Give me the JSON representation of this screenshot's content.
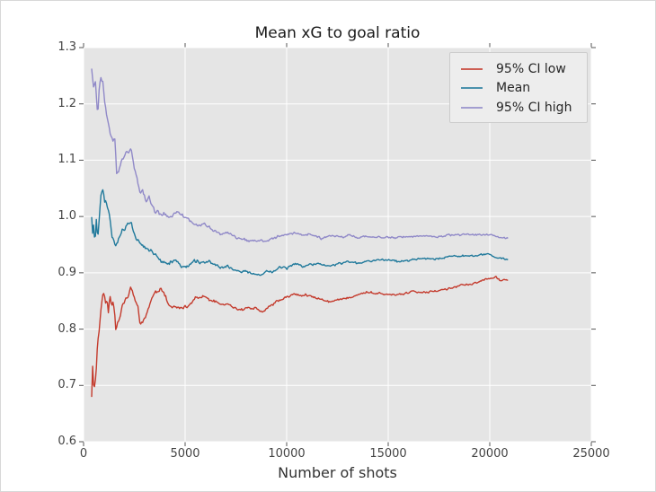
{
  "figure": {
    "background": "#ffffff",
    "plot_background": "#e5e5e5",
    "grid_color": "#ffffff",
    "tick_color": "#555555",
    "text_color": "#444444"
  },
  "chart_data": {
    "type": "line",
    "title": "Mean xG to goal ratio",
    "xlabel": "Number of shots",
    "ylabel": "",
    "xlim": [
      0,
      25000
    ],
    "ylim": [
      0.6,
      1.3
    ],
    "x_ticks": [
      "0",
      "5000",
      "10000",
      "15000",
      "20000",
      "25000"
    ],
    "y_ticks": [
      "0.6",
      "0.7",
      "0.8",
      "0.9",
      "1.0",
      "1.1",
      "1.2",
      "1.3"
    ],
    "grid": true,
    "legend_position": "upper right",
    "noise": {
      "base": 0.02,
      "ref": 700,
      "cap": 0.022
    },
    "series": [
      {
        "name": "95% CI low",
        "color": "#c43b2d",
        "points": [
          [
            400,
            0.682
          ],
          [
            440,
            0.728
          ],
          [
            480,
            0.71
          ],
          [
            520,
            0.695
          ],
          [
            580,
            0.716
          ],
          [
            640,
            0.74
          ],
          [
            700,
            0.778
          ],
          [
            760,
            0.8
          ],
          [
            820,
            0.812
          ],
          [
            880,
            0.837
          ],
          [
            970,
            0.868
          ],
          [
            1030,
            0.85
          ],
          [
            1100,
            0.845
          ],
          [
            1160,
            0.856
          ],
          [
            1200,
            0.818
          ],
          [
            1280,
            0.857
          ],
          [
            1370,
            0.843
          ],
          [
            1460,
            0.852
          ],
          [
            1530,
            0.83
          ],
          [
            1590,
            0.798
          ],
          [
            1700,
            0.814
          ],
          [
            1800,
            0.822
          ],
          [
            1900,
            0.838
          ],
          [
            2030,
            0.846
          ],
          [
            2210,
            0.861
          ],
          [
            2340,
            0.876
          ],
          [
            2430,
            0.862
          ],
          [
            2560,
            0.846
          ],
          [
            2690,
            0.836
          ],
          [
            2780,
            0.806
          ],
          [
            2920,
            0.815
          ],
          [
            3090,
            0.826
          ],
          [
            3220,
            0.84
          ],
          [
            3360,
            0.853
          ],
          [
            3530,
            0.869
          ],
          [
            3670,
            0.864
          ],
          [
            3800,
            0.875
          ],
          [
            3980,
            0.862
          ],
          [
            4110,
            0.852
          ],
          [
            4240,
            0.841
          ],
          [
            4420,
            0.837
          ],
          [
            4550,
            0.842
          ],
          [
            4680,
            0.838
          ],
          [
            4900,
            0.837
          ],
          [
            5120,
            0.841
          ],
          [
            5430,
            0.852
          ],
          [
            5570,
            0.857
          ],
          [
            5740,
            0.854
          ],
          [
            5960,
            0.857
          ],
          [
            6180,
            0.852
          ],
          [
            6400,
            0.85
          ],
          [
            6630,
            0.846
          ],
          [
            6850,
            0.843
          ],
          [
            7070,
            0.845
          ],
          [
            7290,
            0.84
          ],
          [
            7510,
            0.837
          ],
          [
            7770,
            0.834
          ],
          [
            8080,
            0.837
          ],
          [
            8390,
            0.839
          ],
          [
            8660,
            0.834
          ],
          [
            8900,
            0.831
          ],
          [
            9190,
            0.842
          ],
          [
            9600,
            0.85
          ],
          [
            10000,
            0.856
          ],
          [
            10380,
            0.862
          ],
          [
            10950,
            0.861
          ],
          [
            11400,
            0.856
          ],
          [
            11700,
            0.853
          ],
          [
            12150,
            0.848
          ],
          [
            12600,
            0.852
          ],
          [
            13030,
            0.857
          ],
          [
            13500,
            0.862
          ],
          [
            13910,
            0.866
          ],
          [
            14400,
            0.864
          ],
          [
            14930,
            0.863
          ],
          [
            15680,
            0.861
          ],
          [
            16250,
            0.868
          ],
          [
            16830,
            0.866
          ],
          [
            17710,
            0.87
          ],
          [
            18300,
            0.875
          ],
          [
            18600,
            0.878
          ],
          [
            19350,
            0.881
          ],
          [
            19920,
            0.89
          ],
          [
            20300,
            0.892
          ],
          [
            20550,
            0.886
          ],
          [
            20900,
            0.886
          ]
        ]
      },
      {
        "name": "Mean",
        "color": "#20799b",
        "points": [
          [
            400,
            0.99
          ],
          [
            450,
            0.962
          ],
          [
            500,
            0.988
          ],
          [
            560,
            0.944
          ],
          [
            620,
            1.0
          ],
          [
            700,
            0.962
          ],
          [
            800,
            1.012
          ],
          [
            930,
            1.057
          ],
          [
            1020,
            1.032
          ],
          [
            1100,
            1.022
          ],
          [
            1240,
            1.012
          ],
          [
            1400,
            0.968
          ],
          [
            1550,
            0.942
          ],
          [
            1650,
            0.956
          ],
          [
            1900,
            0.974
          ],
          [
            2120,
            0.982
          ],
          [
            2340,
            0.99
          ],
          [
            2470,
            0.968
          ],
          [
            2690,
            0.958
          ],
          [
            2920,
            0.948
          ],
          [
            3140,
            0.94
          ],
          [
            3360,
            0.937
          ],
          [
            3580,
            0.932
          ],
          [
            3800,
            0.921
          ],
          [
            4110,
            0.917
          ],
          [
            4420,
            0.921
          ],
          [
            4680,
            0.917
          ],
          [
            4990,
            0.91
          ],
          [
            5300,
            0.917
          ],
          [
            5570,
            0.921
          ],
          [
            5870,
            0.917
          ],
          [
            6180,
            0.921
          ],
          [
            6450,
            0.913
          ],
          [
            6760,
            0.908
          ],
          [
            7070,
            0.91
          ],
          [
            7330,
            0.905
          ],
          [
            7730,
            0.902
          ],
          [
            8080,
            0.901
          ],
          [
            8520,
            0.897
          ],
          [
            8970,
            0.901
          ],
          [
            9320,
            0.902
          ],
          [
            9630,
            0.91
          ],
          [
            10000,
            0.908
          ],
          [
            10380,
            0.916
          ],
          [
            10800,
            0.912
          ],
          [
            11200,
            0.915
          ],
          [
            11700,
            0.916
          ],
          [
            12150,
            0.912
          ],
          [
            12600,
            0.916
          ],
          [
            13030,
            0.92
          ],
          [
            13500,
            0.917
          ],
          [
            13910,
            0.92
          ],
          [
            14400,
            0.922
          ],
          [
            14930,
            0.923
          ],
          [
            15400,
            0.92
          ],
          [
            15900,
            0.922
          ],
          [
            16400,
            0.924
          ],
          [
            16830,
            0.925
          ],
          [
            17300,
            0.924
          ],
          [
            17800,
            0.927
          ],
          [
            18300,
            0.929
          ],
          [
            18900,
            0.931
          ],
          [
            19400,
            0.931
          ],
          [
            19920,
            0.933
          ],
          [
            20300,
            0.928
          ],
          [
            20600,
            0.925
          ],
          [
            20900,
            0.924
          ]
        ]
      },
      {
        "name": "95% CI high",
        "color": "#9089c8",
        "points": [
          [
            400,
            1.262
          ],
          [
            480,
            1.218
          ],
          [
            560,
            1.246
          ],
          [
            640,
            1.208
          ],
          [
            700,
            1.166
          ],
          [
            780,
            1.232
          ],
          [
            850,
            1.246
          ],
          [
            930,
            1.238
          ],
          [
            1020,
            1.21
          ],
          [
            1150,
            1.176
          ],
          [
            1240,
            1.163
          ],
          [
            1330,
            1.145
          ],
          [
            1450,
            1.14
          ],
          [
            1550,
            1.136
          ],
          [
            1620,
            1.082
          ],
          [
            1700,
            1.076
          ],
          [
            1800,
            1.09
          ],
          [
            1900,
            1.107
          ],
          [
            2030,
            1.112
          ],
          [
            2210,
            1.115
          ],
          [
            2340,
            1.117
          ],
          [
            2470,
            1.086
          ],
          [
            2650,
            1.065
          ],
          [
            2780,
            1.047
          ],
          [
            2920,
            1.044
          ],
          [
            3090,
            1.028
          ],
          [
            3220,
            1.033
          ],
          [
            3360,
            1.02
          ],
          [
            3530,
            1.007
          ],
          [
            3670,
            1.009
          ],
          [
            3800,
            1.001
          ],
          [
            4020,
            1.004
          ],
          [
            4240,
            0.998
          ],
          [
            4550,
            1.009
          ],
          [
            4860,
            1.001
          ],
          [
            5080,
            0.998
          ],
          [
            5340,
            0.99
          ],
          [
            5570,
            0.983
          ],
          [
            5870,
            0.985
          ],
          [
            6180,
            0.982
          ],
          [
            6450,
            0.974
          ],
          [
            6760,
            0.969
          ],
          [
            7070,
            0.972
          ],
          [
            7330,
            0.966
          ],
          [
            7730,
            0.961
          ],
          [
            8080,
            0.958
          ],
          [
            8520,
            0.957
          ],
          [
            8970,
            0.958
          ],
          [
            9320,
            0.961
          ],
          [
            9700,
            0.965
          ],
          [
            10380,
            0.972
          ],
          [
            10800,
            0.967
          ],
          [
            11200,
            0.969
          ],
          [
            11700,
            0.961
          ],
          [
            12150,
            0.966
          ],
          [
            12600,
            0.963
          ],
          [
            13030,
            0.966
          ],
          [
            13500,
            0.963
          ],
          [
            13910,
            0.965
          ],
          [
            14400,
            0.962
          ],
          [
            14930,
            0.964
          ],
          [
            15400,
            0.962
          ],
          [
            15900,
            0.964
          ],
          [
            16400,
            0.965
          ],
          [
            16830,
            0.966
          ],
          [
            17300,
            0.964
          ],
          [
            17800,
            0.966
          ],
          [
            18300,
            0.967
          ],
          [
            18900,
            0.969
          ],
          [
            19400,
            0.967
          ],
          [
            19920,
            0.968
          ],
          [
            20300,
            0.966
          ],
          [
            20600,
            0.962
          ],
          [
            20900,
            0.961
          ]
        ]
      }
    ]
  }
}
